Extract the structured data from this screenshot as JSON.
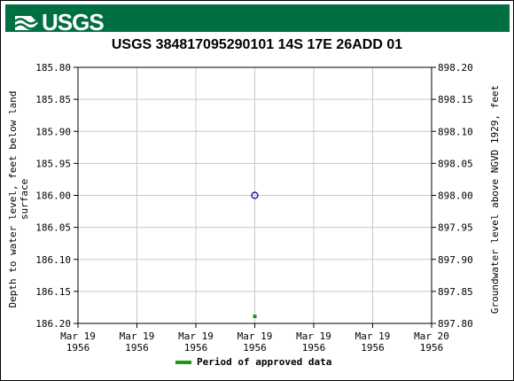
{
  "header": {
    "agency": "USGS",
    "brand_color": "#006f41"
  },
  "chart_data": {
    "type": "scatter",
    "title": "USGS 384817095290101 14S 17E 26ADD 01",
    "ylabel_left": "Depth to water level, feet below land surface",
    "ylabel_right": "Groundwater level above NGVD 1929, feet",
    "y_left_ticks": [
      "185.80",
      "185.85",
      "185.90",
      "185.95",
      "186.00",
      "186.05",
      "186.10",
      "186.15",
      "186.20"
    ],
    "y_right_ticks": [
      "898.20",
      "898.15",
      "898.10",
      "898.05",
      "898.00",
      "897.95",
      "897.90",
      "897.85",
      "897.80"
    ],
    "y_left_range": [
      185.8,
      186.2
    ],
    "y_inverted": true,
    "x_ticks": [
      [
        "Mar 19",
        "1956"
      ],
      [
        "Mar 19",
        "1956"
      ],
      [
        "Mar 19",
        "1956"
      ],
      [
        "Mar 19",
        "1956"
      ],
      [
        "Mar 19",
        "1956"
      ],
      [
        "Mar 19",
        "1956"
      ],
      [
        "Mar 20",
        "1956"
      ]
    ],
    "grid": true,
    "series": [
      {
        "marker": "open-circle",
        "color": "#00008b",
        "x": "Mar 19 1956 12:00",
        "y": 186.0
      }
    ],
    "approved_period": {
      "x": "Mar 19 1956 12:00",
      "color": "#1a9a1a"
    },
    "legend": {
      "label": "Period of approved data",
      "placement": "bottom"
    }
  }
}
